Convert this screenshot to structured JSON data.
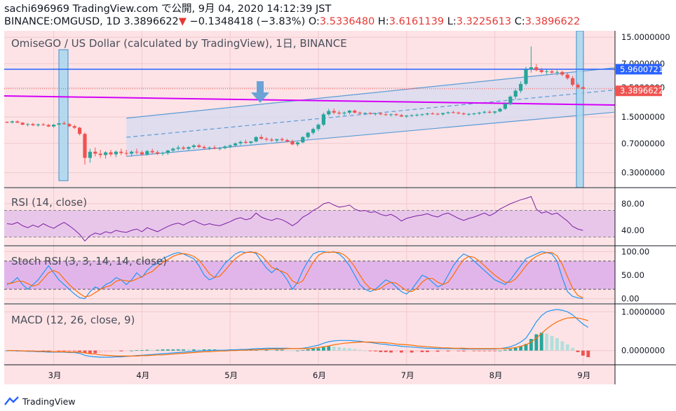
{
  "header": {
    "line1": "sachi696969 TradingView.com で公開, 9月 04, 2020 14:12:39 JST",
    "symbol_prefix": "BINANCE:OMGUSD, 1D 3.3896622",
    "arrow": "▼",
    "change": "−0.1348418 (−3.83%)",
    "o_label": " O:",
    "o_value": "3.5336480",
    "h_label": " H:",
    "h_value": "3.6161139",
    "l_label": " L:",
    "l_value": "3.3225613",
    "c_label": " C:",
    "c_value": "3.3896622"
  },
  "panes": {
    "main_label": "OmiseGO / US Dollar (calculated by TradingView), 1日, BINANCE",
    "rsi_label": "RSI (14, close)",
    "stoch_label": "Stoch RSI (3, 3, 14, 14, close)",
    "macd_label": "MACD (12, 26, close, 9)"
  },
  "footer": {
    "brand": "TradingView"
  },
  "colors": {
    "up": "#26a69a",
    "down": "#ef5350",
    "pane_bg": "#fde3e6",
    "channel": "#5b9bd5",
    "magenta": "#d500f9",
    "hline": "#2962ff",
    "highlight_fill": "#a7d7f0",
    "rsi_line": "#7b1fa2",
    "stoch_k": "#2196f3",
    "stoch_d": "#ff6d00",
    "macd_line": "#2196f3",
    "signal_line": "#ff6d00",
    "marker_arrow": "#5b9bd5"
  },
  "chart_data": [
    {
      "type": "candlestick",
      "name": "price",
      "scale": "log",
      "ylim": [
        0.22,
        17
      ],
      "x_dates": [
        "3月",
        "4月",
        "5月",
        "6月",
        "7月",
        "8月",
        "9月"
      ],
      "y_ticks": [
        "15.0000000",
        "7.0000000",
        "3.5000000",
        "1.5000000",
        "0.7000000",
        "0.3000000"
      ],
      "tick_values": [
        15,
        7,
        3.5,
        1.5,
        0.7,
        0.3
      ],
      "resistance_label": "5.9600721",
      "resistance_value": 5.96,
      "last_label": "3.3896622",
      "last_value": 3.3896622,
      "ohlc": [
        [
          1.3,
          1.32,
          1.25,
          1.28
        ],
        [
          1.28,
          1.35,
          1.24,
          1.32
        ],
        [
          1.32,
          1.36,
          1.26,
          1.27
        ],
        [
          1.27,
          1.3,
          1.18,
          1.2
        ],
        [
          1.2,
          1.25,
          1.14,
          1.22
        ],
        [
          1.22,
          1.27,
          1.15,
          1.18
        ],
        [
          1.18,
          1.24,
          1.13,
          1.21
        ],
        [
          1.21,
          1.26,
          1.16,
          1.19
        ],
        [
          1.19,
          1.23,
          1.12,
          1.14
        ],
        [
          1.14,
          1.22,
          1.1,
          1.2
        ],
        [
          1.2,
          1.28,
          1.16,
          1.25
        ],
        [
          1.25,
          1.32,
          1.2,
          1.22
        ],
        [
          1.22,
          1.26,
          1.12,
          1.15
        ],
        [
          1.15,
          1.2,
          1.06,
          1.1
        ],
        [
          1.1,
          1.13,
          0.88,
          0.92
        ],
        [
          0.92,
          0.96,
          0.38,
          0.46
        ],
        [
          0.46,
          0.6,
          0.4,
          0.55
        ],
        [
          0.55,
          0.62,
          0.48,
          0.52
        ],
        [
          0.52,
          0.58,
          0.46,
          0.5
        ],
        [
          0.5,
          0.56,
          0.45,
          0.54
        ],
        [
          0.54,
          0.58,
          0.48,
          0.51
        ],
        [
          0.51,
          0.57,
          0.47,
          0.55
        ],
        [
          0.55,
          0.6,
          0.5,
          0.53
        ],
        [
          0.53,
          0.58,
          0.49,
          0.52
        ],
        [
          0.52,
          0.57,
          0.48,
          0.55
        ],
        [
          0.55,
          0.6,
          0.51,
          0.54
        ],
        [
          0.54,
          0.57,
          0.49,
          0.51
        ],
        [
          0.51,
          0.58,
          0.49,
          0.56
        ],
        [
          0.56,
          0.6,
          0.52,
          0.54
        ],
        [
          0.54,
          0.57,
          0.5,
          0.52
        ],
        [
          0.52,
          0.55,
          0.49,
          0.53
        ],
        [
          0.53,
          0.58,
          0.5,
          0.57
        ],
        [
          0.57,
          0.62,
          0.54,
          0.6
        ],
        [
          0.6,
          0.66,
          0.57,
          0.62
        ],
        [
          0.62,
          0.65,
          0.58,
          0.6
        ],
        [
          0.6,
          0.64,
          0.57,
          0.63
        ],
        [
          0.63,
          0.68,
          0.6,
          0.66
        ],
        [
          0.66,
          0.69,
          0.61,
          0.63
        ],
        [
          0.63,
          0.66,
          0.59,
          0.61
        ],
        [
          0.61,
          0.64,
          0.58,
          0.62
        ],
        [
          0.62,
          0.66,
          0.59,
          0.6
        ],
        [
          0.6,
          0.63,
          0.57,
          0.61
        ],
        [
          0.61,
          0.66,
          0.59,
          0.64
        ],
        [
          0.64,
          0.68,
          0.61,
          0.66
        ],
        [
          0.66,
          0.72,
          0.64,
          0.7
        ],
        [
          0.7,
          0.76,
          0.66,
          0.73
        ],
        [
          0.73,
          0.78,
          0.69,
          0.71
        ],
        [
          0.71,
          0.75,
          0.68,
          0.74
        ],
        [
          0.74,
          0.86,
          0.72,
          0.84
        ],
        [
          0.84,
          0.9,
          0.78,
          0.8
        ],
        [
          0.8,
          0.84,
          0.75,
          0.78
        ],
        [
          0.78,
          0.82,
          0.73,
          0.76
        ],
        [
          0.76,
          0.8,
          0.72,
          0.79
        ],
        [
          0.79,
          0.83,
          0.74,
          0.77
        ],
        [
          0.77,
          0.8,
          0.72,
          0.74
        ],
        [
          0.74,
          0.78,
          0.66,
          0.68
        ],
        [
          0.68,
          0.74,
          0.64,
          0.72
        ],
        [
          0.72,
          0.86,
          0.7,
          0.84
        ],
        [
          0.84,
          0.98,
          0.8,
          0.95
        ],
        [
          0.95,
          1.1,
          0.9,
          1.06
        ],
        [
          1.06,
          1.25,
          1.0,
          1.2
        ],
        [
          1.2,
          1.7,
          1.15,
          1.62
        ],
        [
          1.62,
          1.9,
          1.55,
          1.78
        ],
        [
          1.78,
          1.92,
          1.62,
          1.7
        ],
        [
          1.7,
          1.8,
          1.58,
          1.66
        ],
        [
          1.66,
          1.76,
          1.56,
          1.7
        ],
        [
          1.7,
          1.84,
          1.62,
          1.8
        ],
        [
          1.8,
          1.86,
          1.66,
          1.7
        ],
        [
          1.7,
          1.76,
          1.6,
          1.66
        ],
        [
          1.66,
          1.72,
          1.58,
          1.68
        ],
        [
          1.68,
          1.74,
          1.6,
          1.64
        ],
        [
          1.64,
          1.7,
          1.56,
          1.66
        ],
        [
          1.66,
          1.72,
          1.58,
          1.62
        ],
        [
          1.62,
          1.68,
          1.55,
          1.6
        ],
        [
          1.6,
          1.66,
          1.52,
          1.62
        ],
        [
          1.62,
          1.68,
          1.54,
          1.58
        ],
        [
          1.58,
          1.64,
          1.5,
          1.52
        ],
        [
          1.52,
          1.6,
          1.46,
          1.56
        ],
        [
          1.56,
          1.62,
          1.5,
          1.58
        ],
        [
          1.58,
          1.65,
          1.52,
          1.6
        ],
        [
          1.6,
          1.66,
          1.54,
          1.62
        ],
        [
          1.62,
          1.7,
          1.56,
          1.66
        ],
        [
          1.66,
          1.72,
          1.6,
          1.64
        ],
        [
          1.64,
          1.7,
          1.58,
          1.62
        ],
        [
          1.62,
          1.7,
          1.56,
          1.68
        ],
        [
          1.68,
          1.76,
          1.62,
          1.72
        ],
        [
          1.72,
          1.8,
          1.66,
          1.7
        ],
        [
          1.7,
          1.76,
          1.62,
          1.66
        ],
        [
          1.66,
          1.72,
          1.58,
          1.62
        ],
        [
          1.62,
          1.68,
          1.55,
          1.64
        ],
        [
          1.64,
          1.7,
          1.58,
          1.66
        ],
        [
          1.66,
          1.74,
          1.6,
          1.7
        ],
        [
          1.7,
          1.8,
          1.64,
          1.74
        ],
        [
          1.74,
          1.82,
          1.66,
          1.7
        ],
        [
          1.7,
          1.78,
          1.62,
          1.76
        ],
        [
          1.76,
          1.96,
          1.72,
          1.9
        ],
        [
          1.9,
          2.3,
          1.84,
          2.2
        ],
        [
          2.2,
          2.8,
          2.1,
          2.7
        ],
        [
          2.7,
          3.4,
          2.5,
          3.2
        ],
        [
          3.2,
          4.2,
          3.0,
          3.9
        ],
        [
          3.9,
          6.4,
          3.7,
          5.9
        ],
        [
          5.9,
          11.5,
          5.4,
          6.3
        ],
        [
          6.3,
          6.9,
          5.6,
          5.8
        ],
        [
          5.8,
          6.2,
          5.3,
          5.5
        ],
        [
          5.5,
          5.9,
          5.1,
          5.6
        ],
        [
          5.6,
          6.0,
          5.2,
          5.4
        ],
        [
          5.4,
          5.8,
          5.0,
          5.5
        ],
        [
          5.5,
          5.7,
          4.9,
          5.1
        ],
        [
          5.1,
          5.4,
          4.4,
          4.6
        ],
        [
          4.6,
          4.9,
          3.6,
          3.8
        ],
        [
          3.8,
          4.0,
          3.4,
          3.52
        ],
        [
          3.533648,
          3.6161139,
          3.3225613,
          3.3896622
        ]
      ]
    },
    {
      "type": "line",
      "name": "RSI",
      "ylim": [
        20,
        100
      ],
      "y_ticks": [
        "80.00",
        "40.00"
      ],
      "tick_values": [
        80,
        40
      ],
      "bands": [
        70,
        30
      ],
      "values": [
        50,
        49,
        52,
        47,
        44,
        48,
        45,
        50,
        46,
        43,
        48,
        52,
        47,
        41,
        34,
        24,
        32,
        36,
        34,
        38,
        36,
        40,
        38,
        37,
        40,
        42,
        38,
        44,
        41,
        38,
        42,
        46,
        49,
        51,
        48,
        52,
        55,
        51,
        48,
        50,
        48,
        47,
        50,
        53,
        57,
        59,
        56,
        58,
        66,
        60,
        57,
        55,
        58,
        56,
        52,
        47,
        52,
        60,
        64,
        70,
        74,
        80,
        82,
        78,
        75,
        76,
        78,
        72,
        69,
        70,
        67,
        68,
        64,
        62,
        64,
        60,
        54,
        58,
        60,
        62,
        63,
        65,
        62,
        60,
        64,
        66,
        62,
        58,
        55,
        58,
        60,
        63,
        66,
        62,
        66,
        72,
        76,
        80,
        83,
        86,
        88,
        91,
        72,
        66,
        68,
        64,
        66,
        60,
        54,
        46,
        42,
        40
      ]
    },
    {
      "type": "line",
      "name": "Stoch RSI",
      "ylim": [
        -8,
        108
      ],
      "y_ticks": [
        "100.00",
        "50.00",
        "0.00"
      ],
      "tick_values": [
        100,
        50,
        0
      ],
      "bands": [
        80,
        20
      ],
      "k": [
        30,
        35,
        45,
        30,
        20,
        30,
        40,
        55,
        70,
        55,
        40,
        30,
        20,
        10,
        2,
        0,
        15,
        25,
        20,
        30,
        35,
        45,
        40,
        30,
        40,
        55,
        45,
        60,
        70,
        75,
        85,
        90,
        95,
        98,
        95,
        90,
        85,
        70,
        50,
        40,
        45,
        60,
        75,
        85,
        95,
        100,
        98,
        100,
        96,
        80,
        65,
        55,
        65,
        55,
        40,
        20,
        35,
        60,
        80,
        95,
        100,
        100,
        98,
        100,
        95,
        85,
        70,
        50,
        30,
        20,
        15,
        20,
        30,
        40,
        35,
        25,
        15,
        10,
        20,
        35,
        50,
        45,
        35,
        25,
        30,
        50,
        70,
        85,
        95,
        90,
        80,
        70,
        60,
        50,
        40,
        35,
        30,
        40,
        55,
        70,
        85,
        90,
        95,
        100,
        98,
        95,
        80,
        45,
        15,
        5,
        2,
        0
      ],
      "d": [
        32,
        33,
        37,
        37,
        32,
        27,
        30,
        42,
        55,
        60,
        55,
        42,
        30,
        20,
        11,
        4,
        6,
        13,
        20,
        25,
        28,
        37,
        40,
        38,
        37,
        42,
        47,
        53,
        58,
        68,
        77,
        83,
        90,
        94,
        96,
        94,
        90,
        82,
        68,
        53,
        45,
        48,
        60,
        73,
        85,
        93,
        98,
        99,
        98,
        92,
        80,
        67,
        62,
        58,
        53,
        38,
        32,
        38,
        58,
        78,
        92,
        98,
        99,
        99,
        98,
        93,
        83,
        68,
        50,
        33,
        22,
        18,
        22,
        30,
        35,
        33,
        25,
        17,
        15,
        22,
        35,
        43,
        43,
        35,
        30,
        35,
        50,
        68,
        83,
        90,
        88,
        80,
        70,
        60,
        50,
        42,
        35,
        35,
        42,
        55,
        70,
        82,
        90,
        95,
        98,
        98,
        91,
        73,
        47,
        22,
        7,
        2
      ]
    },
    {
      "type": "line+histogram",
      "name": "MACD",
      "ylim": [
        -0.33,
        1.15
      ],
      "y_ticks": [
        "1.0000000",
        "0.0000000"
      ],
      "tick_values": [
        1,
        0
      ],
      "macd": [
        0.0,
        0.0,
        -0.01,
        -0.01,
        -0.02,
        -0.02,
        -0.03,
        -0.03,
        -0.04,
        -0.04,
        -0.04,
        -0.04,
        -0.05,
        -0.05,
        -0.07,
        -0.12,
        -0.15,
        -0.16,
        -0.17,
        -0.17,
        -0.17,
        -0.16,
        -0.16,
        -0.15,
        -0.14,
        -0.13,
        -0.12,
        -0.11,
        -0.1,
        -0.09,
        -0.08,
        -0.07,
        -0.06,
        -0.05,
        -0.04,
        -0.03,
        -0.02,
        -0.01,
        0.0,
        0.0,
        0.01,
        0.01,
        0.01,
        0.02,
        0.02,
        0.03,
        0.03,
        0.04,
        0.05,
        0.05,
        0.06,
        0.06,
        0.06,
        0.06,
        0.06,
        0.05,
        0.05,
        0.06,
        0.08,
        0.11,
        0.14,
        0.19,
        0.23,
        0.25,
        0.26,
        0.26,
        0.26,
        0.25,
        0.24,
        0.22,
        0.21,
        0.19,
        0.17,
        0.16,
        0.14,
        0.13,
        0.11,
        0.1,
        0.09,
        0.08,
        0.07,
        0.06,
        0.06,
        0.05,
        0.05,
        0.05,
        0.05,
        0.05,
        0.04,
        0.04,
        0.04,
        0.04,
        0.04,
        0.04,
        0.04,
        0.05,
        0.07,
        0.1,
        0.15,
        0.22,
        0.32,
        0.52,
        0.74,
        0.9,
        1.0,
        1.04,
        1.06,
        1.04,
        1.0,
        0.92,
        0.8,
        0.68,
        0.6
      ],
      "signal": [
        0.0,
        0.0,
        0.0,
        -0.01,
        -0.01,
        -0.01,
        -0.02,
        -0.02,
        -0.02,
        -0.03,
        -0.03,
        -0.03,
        -0.04,
        -0.04,
        -0.04,
        -0.06,
        -0.08,
        -0.09,
        -0.11,
        -0.12,
        -0.13,
        -0.14,
        -0.14,
        -0.14,
        -0.14,
        -0.14,
        -0.13,
        -0.13,
        -0.12,
        -0.11,
        -0.11,
        -0.1,
        -0.09,
        -0.08,
        -0.07,
        -0.06,
        -0.05,
        -0.04,
        -0.03,
        -0.03,
        -0.02,
        -0.01,
        -0.01,
        0.0,
        0.0,
        0.01,
        0.01,
        0.02,
        0.02,
        0.03,
        0.03,
        0.04,
        0.04,
        0.04,
        0.05,
        0.05,
        0.05,
        0.05,
        0.05,
        0.06,
        0.08,
        0.1,
        0.12,
        0.15,
        0.17,
        0.19,
        0.2,
        0.21,
        0.22,
        0.22,
        0.22,
        0.21,
        0.21,
        0.2,
        0.19,
        0.17,
        0.16,
        0.15,
        0.14,
        0.12,
        0.11,
        0.1,
        0.09,
        0.08,
        0.07,
        0.07,
        0.06,
        0.06,
        0.06,
        0.05,
        0.05,
        0.05,
        0.05,
        0.05,
        0.05,
        0.05,
        0.05,
        0.06,
        0.08,
        0.11,
        0.15,
        0.22,
        0.32,
        0.44,
        0.56,
        0.66,
        0.74,
        0.8,
        0.84,
        0.85,
        0.84,
        0.81,
        0.77
      ]
    }
  ]
}
